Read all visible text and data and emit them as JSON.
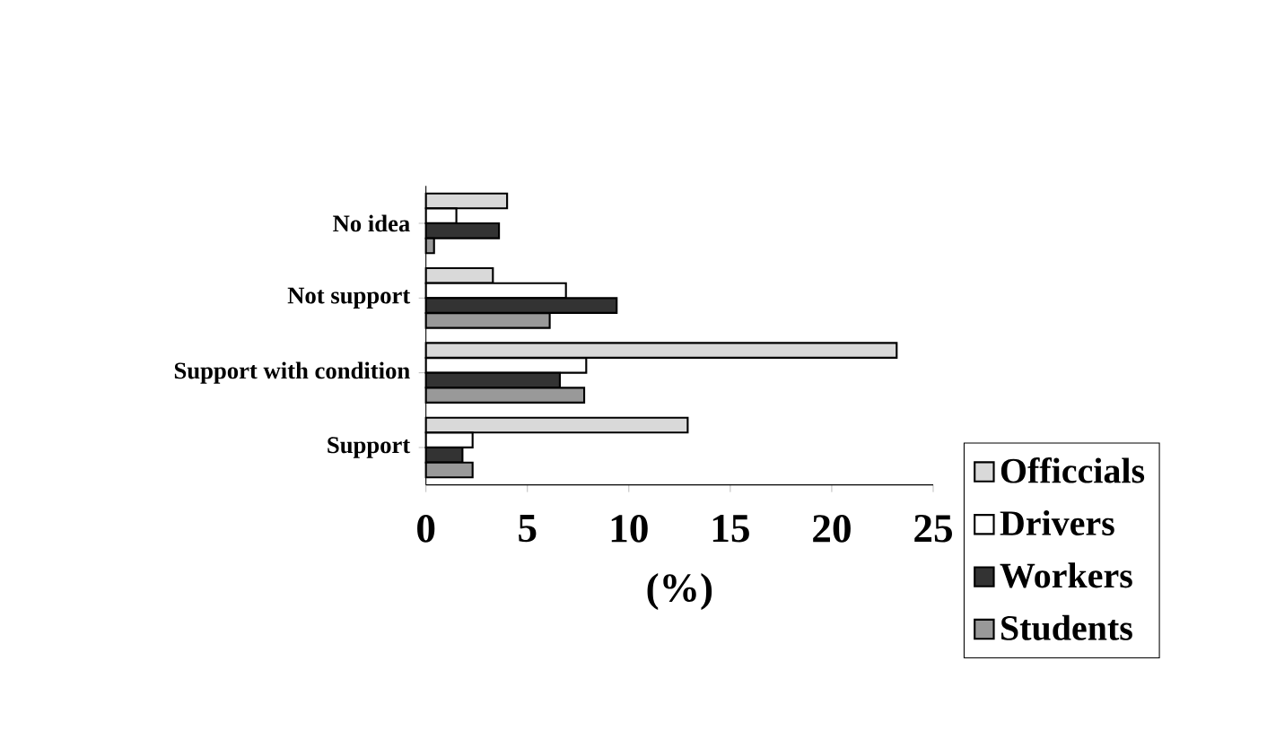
{
  "chart_data": {
    "type": "bar",
    "orientation": "horizontal",
    "xlabel": "(%)",
    "categories": [
      "No idea",
      "Not support",
      "Support with condition",
      "Support"
    ],
    "series": [
      {
        "name": "Officcials",
        "color": "#d9d9d9",
        "values": [
          4.0,
          3.3,
          23.2,
          12.9
        ]
      },
      {
        "name": "Drivers",
        "color": "#ffffff",
        "values": [
          1.5,
          6.9,
          7.9,
          2.3
        ]
      },
      {
        "name": "Workers",
        "color": "#333333",
        "values": [
          3.6,
          9.4,
          6.6,
          1.8
        ]
      },
      {
        "name": "Students",
        "color": "#999999",
        "values": [
          0.4,
          6.1,
          7.8,
          2.3
        ]
      }
    ],
    "xlim": [
      0,
      25
    ],
    "xticks": [
      0,
      5,
      10,
      15,
      20,
      25
    ],
    "legend": "bottom right",
    "grid": false
  }
}
